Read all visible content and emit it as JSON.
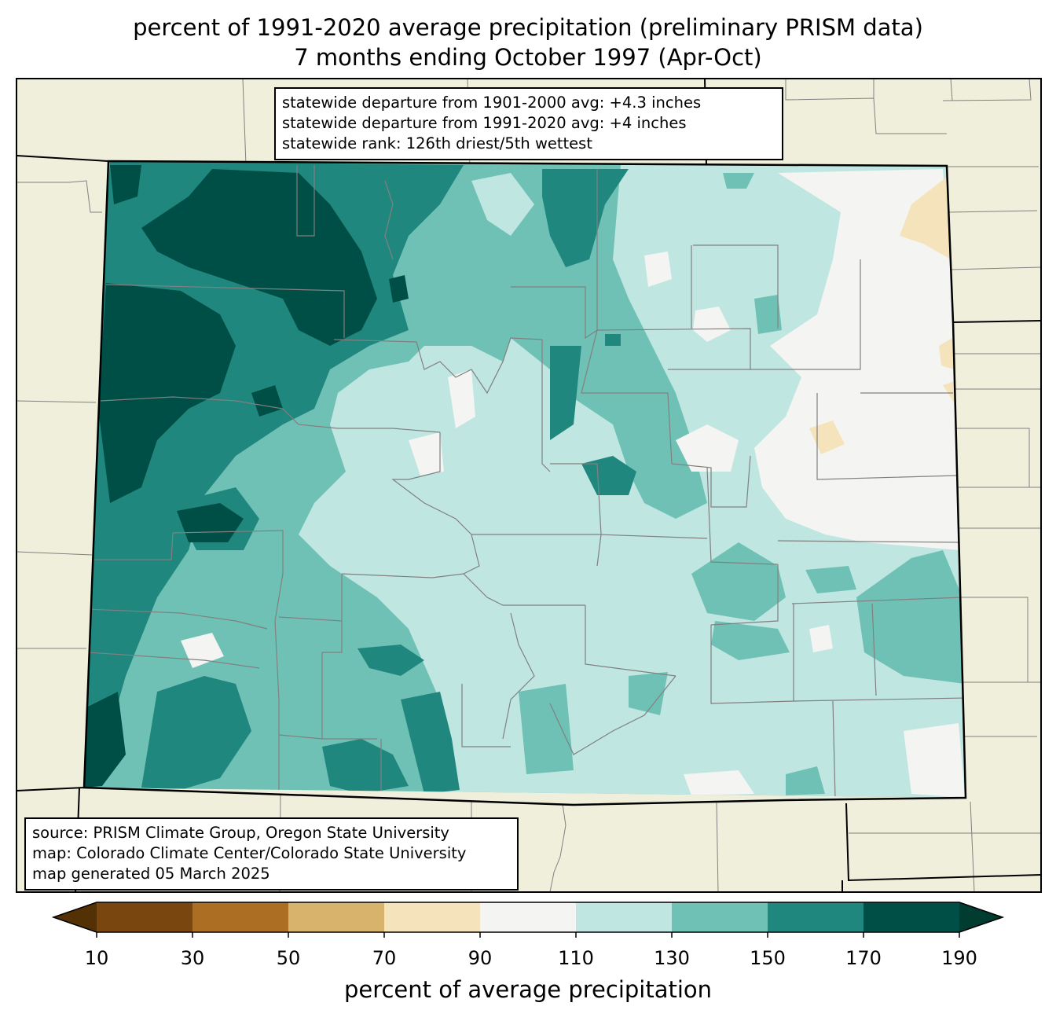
{
  "title_line1": "percent of 1991-2020 average precipitation (preliminary PRISM data)",
  "title_line2": "7 months ending October 1997 (Apr-Oct)",
  "stats": {
    "line1": "statewide departure from 1901-2000 avg: +4.3 inches",
    "line2": "statewide departure from 1991-2020 avg: +4 inches",
    "line3": "statewide rank: 126th driest/5th wettest"
  },
  "source": {
    "line1": "source: PRISM Climate Group, Oregon State University",
    "line2": "map: Colorado Climate Center/Colorado State University",
    "line3": "map generated 05 March 2025"
  },
  "colorbar": {
    "label": "percent of average precipitation",
    "ticks": [
      "10",
      "30",
      "50",
      "70",
      "90",
      "110",
      "130",
      "150",
      "170",
      "190"
    ],
    "under_color": "#543005",
    "over_color": "#003c30",
    "bin_colors": [
      "#7a4610",
      "#ab6e23",
      "#d8b36c",
      "#f4e3bb",
      "#f4f4f2",
      "#bfe6e1",
      "#70c1b5",
      "#20877f",
      "#004f47"
    ]
  },
  "colors": {
    "land_outside": "#efefdc",
    "state_border": "#000000",
    "county_border": "#808080"
  }
}
